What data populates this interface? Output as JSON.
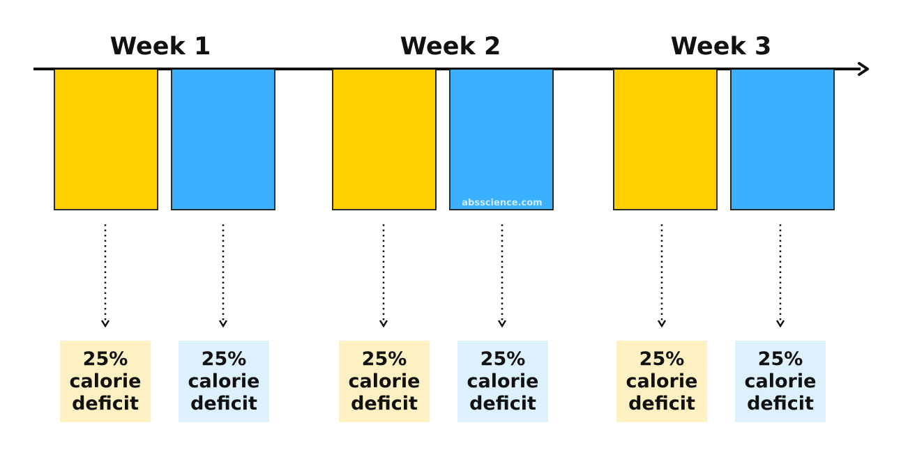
{
  "weeks": [
    {
      "title": "Week 1"
    },
    {
      "title": "Week 2"
    },
    {
      "title": "Week 3"
    }
  ],
  "blocks": [
    {
      "color": "yellow",
      "label_line1": "25%",
      "label_line2": "calorie",
      "label_line3": "deficit"
    },
    {
      "color": "blue",
      "label_line1": "25%",
      "label_line2": "calorie",
      "label_line3": "deficit"
    },
    {
      "color": "yellow",
      "label_line1": "25%",
      "label_line2": "calorie",
      "label_line3": "deficit"
    },
    {
      "color": "blue",
      "label_line1": "25%",
      "label_line2": "calorie",
      "label_line3": "deficit"
    },
    {
      "color": "yellow",
      "label_line1": "25%",
      "label_line2": "calorie",
      "label_line3": "deficit"
    },
    {
      "color": "blue",
      "label_line1": "25%",
      "label_line2": "calorie",
      "label_line3": "deficit"
    }
  ],
  "colors": {
    "yellow": "#FFD000",
    "blue": "#3AB0FF",
    "yellow_light": "#FDF1C3",
    "blue_light": "#DDF1FD"
  },
  "watermark": "absscience.com"
}
